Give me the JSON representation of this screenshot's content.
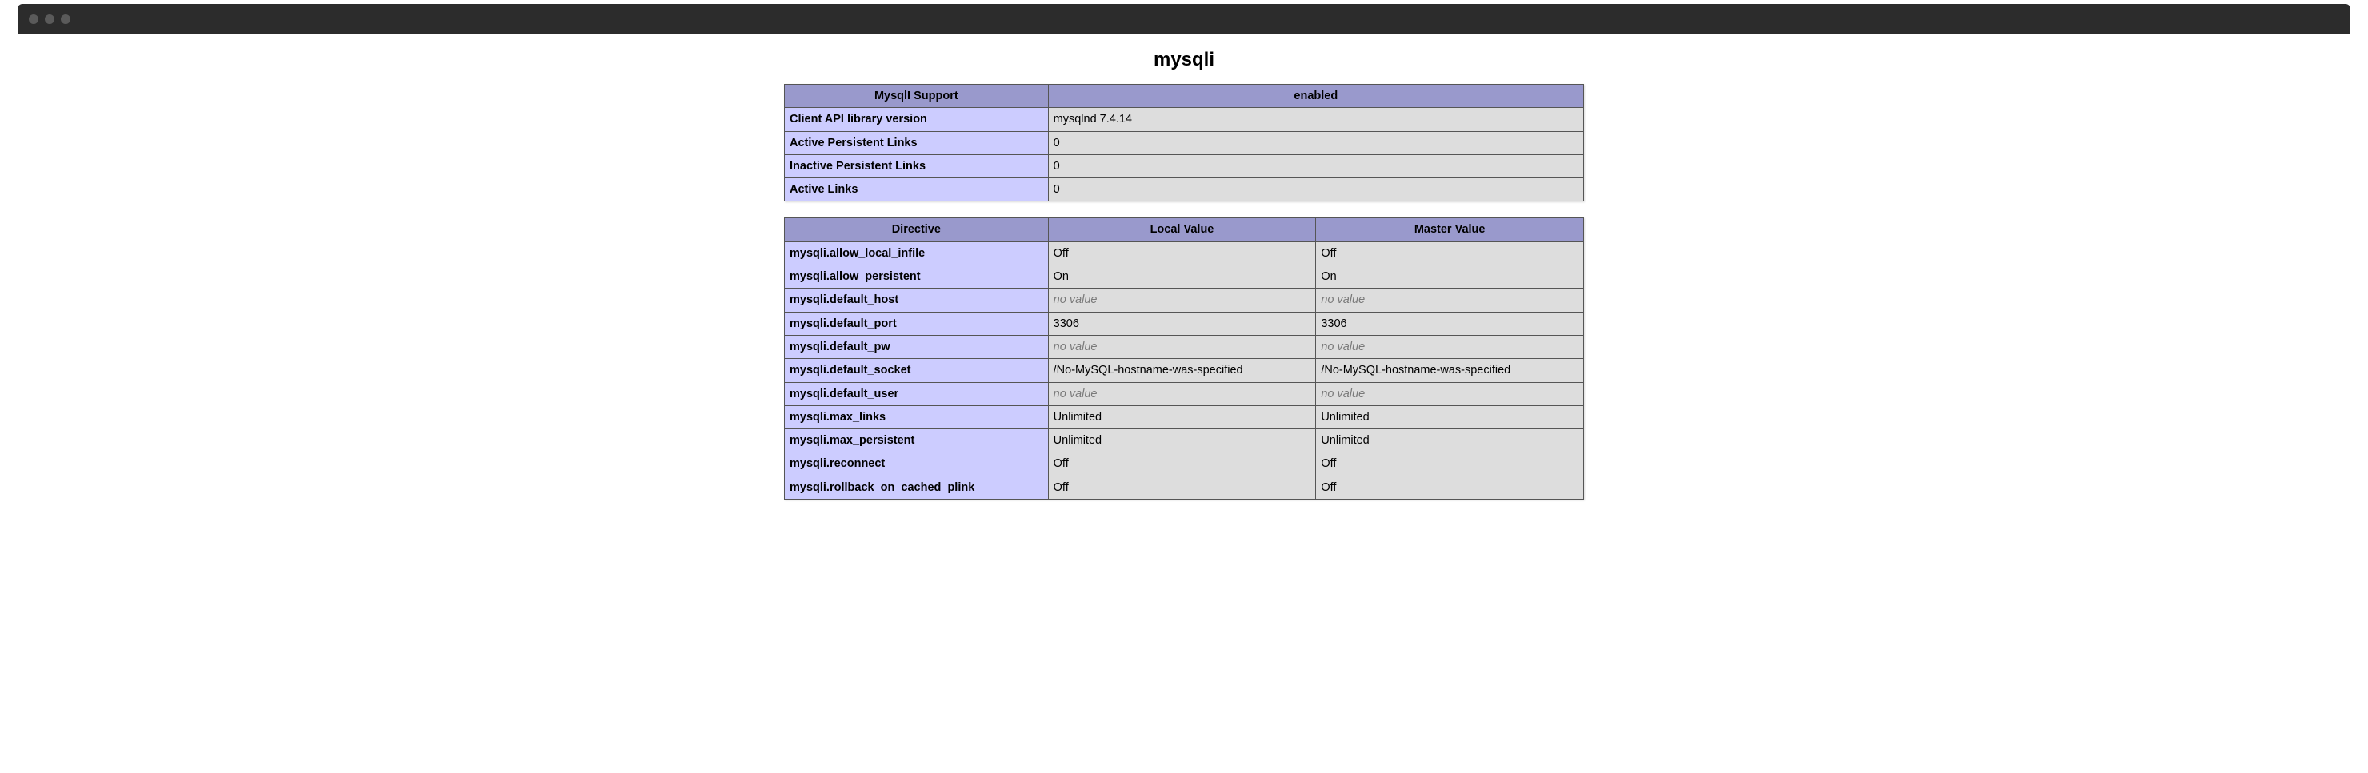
{
  "colors": {
    "titlebar_bg": "#2c2c2c",
    "traffic_light": "#5a5a5a",
    "header_bg": "#9999cc",
    "key_cell_bg": "#ccccff",
    "value_cell_bg": "#dddddd",
    "border": "#555555",
    "novalue_text": "#7a7a7a",
    "page_bg": "#ffffff",
    "text": "#000000"
  },
  "section_title": "mysqli",
  "no_value_text": "no value",
  "support_table": {
    "header": {
      "left": "MysqlI Support",
      "right": "enabled"
    },
    "rows": [
      {
        "key": "Client API library version",
        "value": "mysqlnd 7.4.14"
      },
      {
        "key": "Active Persistent Links",
        "value": "0"
      },
      {
        "key": "Inactive Persistent Links",
        "value": "0"
      },
      {
        "key": "Active Links",
        "value": "0"
      }
    ]
  },
  "directives_table": {
    "headers": {
      "directive": "Directive",
      "local": "Local Value",
      "master": "Master Value"
    },
    "rows": [
      {
        "directive": "mysqli.allow_local_infile",
        "local": "Off",
        "master": "Off"
      },
      {
        "directive": "mysqli.allow_persistent",
        "local": "On",
        "master": "On"
      },
      {
        "directive": "mysqli.default_host",
        "local": null,
        "master": null
      },
      {
        "directive": "mysqli.default_port",
        "local": "3306",
        "master": "3306"
      },
      {
        "directive": "mysqli.default_pw",
        "local": null,
        "master": null
      },
      {
        "directive": "mysqli.default_socket",
        "local": "/No-MySQL-hostname-was-specified",
        "master": "/No-MySQL-hostname-was-specified"
      },
      {
        "directive": "mysqli.default_user",
        "local": null,
        "master": null
      },
      {
        "directive": "mysqli.max_links",
        "local": "Unlimited",
        "master": "Unlimited"
      },
      {
        "directive": "mysqli.max_persistent",
        "local": "Unlimited",
        "master": "Unlimited"
      },
      {
        "directive": "mysqli.reconnect",
        "local": "Off",
        "master": "Off"
      },
      {
        "directive": "mysqli.rollback_on_cached_plink",
        "local": "Off",
        "master": "Off"
      }
    ]
  }
}
